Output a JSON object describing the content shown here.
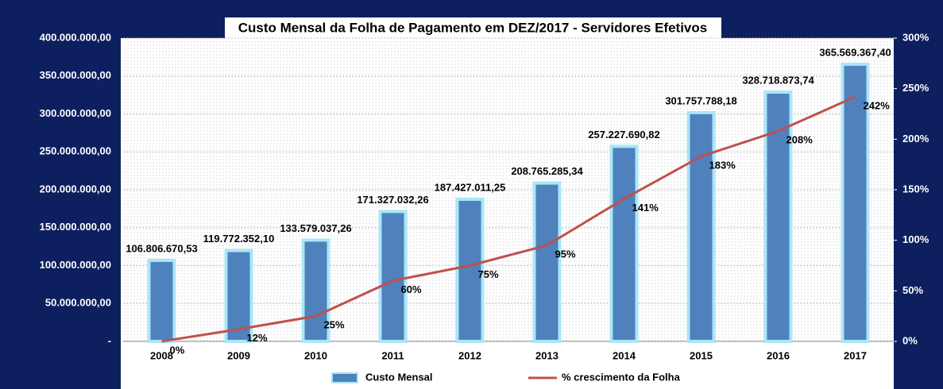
{
  "chart_data": {
    "type": "bar",
    "title": "Custo Mensal da Folha de Pagamento em DEZ/2017 - Servidores Efetivos",
    "categories": [
      "2008",
      "2009",
      "2010",
      "2011",
      "2012",
      "2013",
      "2014",
      "2015",
      "2016",
      "2017"
    ],
    "series": [
      {
        "name": "Custo Mensal",
        "type": "bar",
        "color": "#4f81bd",
        "values": [
          106806670.53,
          119772352.1,
          133579037.26,
          171327032.26,
          187427011.25,
          208765285.34,
          257227690.82,
          301757788.18,
          328718873.74,
          365569367.4
        ],
        "value_labels": [
          "106.806.670,53",
          "119.772.352,10",
          "133.579.037,26",
          "171.327.032,26",
          "187.427.011,25",
          "208.765.285,34",
          "257.227.690,82",
          "301.757.788,18",
          "328.718.873,74",
          "365.569.367,40"
        ]
      },
      {
        "name": "% crescimento da Folha",
        "type": "line",
        "color": "#c0504d",
        "axis": "y2",
        "values": [
          0,
          12,
          25,
          60,
          75,
          95,
          141,
          183,
          208,
          242
        ],
        "value_labels": [
          "0%",
          "12%",
          "25%",
          "60%",
          "75%",
          "95%",
          "141%",
          "183%",
          "208%",
          "242%"
        ]
      }
    ],
    "ylim": [
      0,
      400000000
    ],
    "yticks": [
      {
        "value": 0,
        "label": "-"
      },
      {
        "value": 50000000,
        "label": "50.000.000,00"
      },
      {
        "value": 100000000,
        "label": "100.000.000,00"
      },
      {
        "value": 150000000,
        "label": "150.000.000,00"
      },
      {
        "value": 200000000,
        "label": "200.000.000,00"
      },
      {
        "value": 250000000,
        "label": "250.000.000,00"
      },
      {
        "value": 300000000,
        "label": "300.000.000,00"
      },
      {
        "value": 350000000,
        "label": "350.000.000,00"
      },
      {
        "value": 400000000,
        "label": "400.000.000,00"
      }
    ],
    "y2lim": [
      0,
      300
    ],
    "y2ticks": [
      {
        "value": 0,
        "label": "0%"
      },
      {
        "value": 50,
        "label": "50%"
      },
      {
        "value": 100,
        "label": "100%"
      },
      {
        "value": 150,
        "label": "150%"
      },
      {
        "value": 200,
        "label": "200%"
      },
      {
        "value": 250,
        "label": "250%"
      },
      {
        "value": 300,
        "label": "300%"
      }
    ],
    "grid": true
  }
}
